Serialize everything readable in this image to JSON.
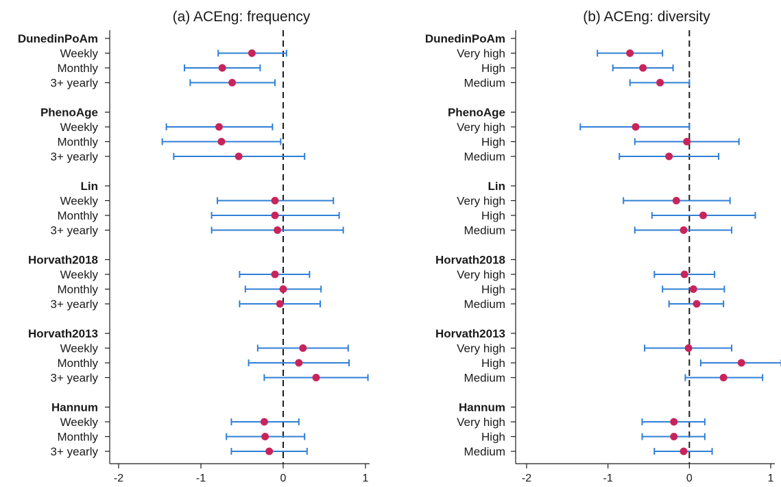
{
  "colors": {
    "ci": "#2f7fd6",
    "point": "#c8245c",
    "axis": "#1a1a1a",
    "ref": "#1a1a1a"
  },
  "chart_data": [
    {
      "type": "dot-and-whisker",
      "title": "(a) ACEng: frequency",
      "xlim": [
        -2.05,
        1.15
      ],
      "xticks": [
        -2,
        -1,
        0,
        1
      ],
      "reference_line": 0,
      "groups": [
        {
          "name": "DunedinPoAm",
          "rows": [
            {
              "label": "Weekly",
              "est": -0.38,
              "lo": -0.79,
              "hi": 0.04
            },
            {
              "label": "Monthly",
              "est": -0.74,
              "lo": -1.2,
              "hi": -0.28
            },
            {
              "label": "3+ yearly",
              "est": -0.62,
              "lo": -1.13,
              "hi": -0.1
            }
          ]
        },
        {
          "name": "PhenoAge",
          "rows": [
            {
              "label": "Weekly",
              "est": -0.78,
              "lo": -1.42,
              "hi": -0.13
            },
            {
              "label": "Monthly",
              "est": -0.75,
              "lo": -1.47,
              "hi": -0.03
            },
            {
              "label": "3+ yearly",
              "est": -0.54,
              "lo": -1.33,
              "hi": 0.26
            }
          ]
        },
        {
          "name": "Lin",
          "rows": [
            {
              "label": "Weekly",
              "est": -0.1,
              "lo": -0.8,
              "hi": 0.61
            },
            {
              "label": "Monthly",
              "est": -0.1,
              "lo": -0.87,
              "hi": 0.68
            },
            {
              "label": "3+ yearly",
              "est": -0.07,
              "lo": -0.87,
              "hi": 0.73
            }
          ]
        },
        {
          "name": "Horvath2018",
          "rows": [
            {
              "label": "Weekly",
              "est": -0.1,
              "lo": -0.53,
              "hi": 0.32
            },
            {
              "label": "Monthly",
              "est": 0.0,
              "lo": -0.46,
              "hi": 0.46
            },
            {
              "label": "3+ yearly",
              "est": -0.04,
              "lo": -0.53,
              "hi": 0.45
            }
          ]
        },
        {
          "name": "Horvath2013",
          "rows": [
            {
              "label": "Weekly",
              "est": 0.24,
              "lo": -0.31,
              "hi": 0.79
            },
            {
              "label": "Monthly",
              "est": 0.19,
              "lo": -0.42,
              "hi": 0.8
            },
            {
              "label": "3+ yearly",
              "est": 0.4,
              "lo": -0.23,
              "hi": 1.03
            }
          ]
        },
        {
          "name": "Hannum",
          "rows": [
            {
              "label": "Weekly",
              "est": -0.23,
              "lo": -0.63,
              "hi": 0.19
            },
            {
              "label": "Monthly",
              "est": -0.22,
              "lo": -0.69,
              "hi": 0.26
            },
            {
              "label": "3+ yearly",
              "est": -0.17,
              "lo": -0.63,
              "hi": 0.29
            }
          ]
        }
      ]
    },
    {
      "type": "dot-and-whisker",
      "title": "(b) ACEng: diversity",
      "xlim": [
        -2.05,
        1.15
      ],
      "xticks": [
        -2,
        -1,
        0,
        1
      ],
      "reference_line": 0,
      "groups": [
        {
          "name": "DunedinPoAm",
          "rows": [
            {
              "label": "Very high",
              "est": -0.73,
              "lo": -1.13,
              "hi": -0.33
            },
            {
              "label": "High",
              "est": -0.57,
              "lo": -0.94,
              "hi": -0.2
            },
            {
              "label": "Medium",
              "est": -0.36,
              "lo": -0.73,
              "hi": 0.0
            }
          ]
        },
        {
          "name": "PhenoAge",
          "rows": [
            {
              "label": "Very high",
              "est": -0.66,
              "lo": -1.34,
              "hi": 0.0
            },
            {
              "label": "High",
              "est": -0.03,
              "lo": -0.67,
              "hi": 0.61
            },
            {
              "label": "Medium",
              "est": -0.25,
              "lo": -0.86,
              "hi": 0.36
            }
          ]
        },
        {
          "name": "Lin",
          "rows": [
            {
              "label": "Very high",
              "est": -0.16,
              "lo": -0.81,
              "hi": 0.5
            },
            {
              "label": "High",
              "est": 0.17,
              "lo": -0.46,
              "hi": 0.81
            },
            {
              "label": "Medium",
              "est": -0.07,
              "lo": -0.67,
              "hi": 0.52
            }
          ]
        },
        {
          "name": "Horvath2018",
          "rows": [
            {
              "label": "Very high",
              "est": -0.06,
              "lo": -0.43,
              "hi": 0.31
            },
            {
              "label": "High",
              "est": 0.05,
              "lo": -0.33,
              "hi": 0.43
            },
            {
              "label": "Medium",
              "est": 0.09,
              "lo": -0.25,
              "hi": 0.42
            }
          ]
        },
        {
          "name": "Horvath2013",
          "rows": [
            {
              "label": "Very high",
              "est": -0.01,
              "lo": -0.55,
              "hi": 0.52
            },
            {
              "label": "High",
              "est": 0.64,
              "lo": 0.14,
              "hi": 1.13
            },
            {
              "label": "Medium",
              "est": 0.42,
              "lo": -0.05,
              "hi": 0.9
            }
          ]
        },
        {
          "name": "Hannum",
          "rows": [
            {
              "label": "Very high",
              "est": -0.19,
              "lo": -0.58,
              "hi": 0.19
            },
            {
              "label": "High",
              "est": -0.19,
              "lo": -0.58,
              "hi": 0.19
            },
            {
              "label": "Medium",
              "est": -0.07,
              "lo": -0.43,
              "hi": 0.28
            }
          ]
        }
      ]
    }
  ]
}
